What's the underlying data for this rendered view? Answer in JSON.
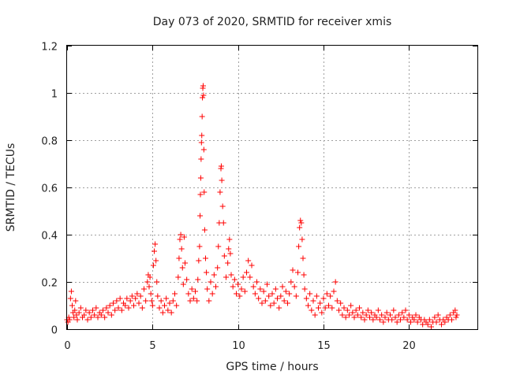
{
  "chart_data": {
    "type": "scatter",
    "title": "Day 073 of 2020, SRMTID for receiver xmis",
    "xlabel": "GPS time / hours",
    "ylabel": "SRMTID / TECUs",
    "xlim": [
      0,
      24
    ],
    "ylim": [
      0,
      1.2
    ],
    "xticks": [
      0,
      5,
      10,
      15,
      20
    ],
    "xtick_labels": [
      "0",
      "5",
      "10",
      "15",
      "20"
    ],
    "yticks": [
      0,
      0.2,
      0.4,
      0.6,
      0.8,
      1.0,
      1.2
    ],
    "ytick_labels": [
      "0",
      "0.2",
      "0.4",
      "0.6",
      "0.8",
      "1",
      "1.2"
    ],
    "grid": true,
    "marker": "+",
    "series": [
      {
        "name": "SRMTID",
        "color": "#ff0000",
        "points": [
          [
            0.0,
            0.04
          ],
          [
            0.05,
            0.03
          ],
          [
            0.1,
            0.05
          ],
          [
            0.15,
            0.04
          ],
          [
            0.2,
            0.13
          ],
          [
            0.25,
            0.16
          ],
          [
            0.3,
            0.1
          ],
          [
            0.35,
            0.07
          ],
          [
            0.4,
            0.05
          ],
          [
            0.45,
            0.08
          ],
          [
            0.5,
            0.12
          ],
          [
            0.55,
            0.06
          ],
          [
            0.6,
            0.04
          ],
          [
            0.7,
            0.07
          ],
          [
            0.8,
            0.09
          ],
          [
            0.9,
            0.05
          ],
          [
            1.0,
            0.06
          ],
          [
            1.1,
            0.08
          ],
          [
            1.2,
            0.04
          ],
          [
            1.3,
            0.07
          ],
          [
            1.4,
            0.05
          ],
          [
            1.5,
            0.08
          ],
          [
            1.6,
            0.06
          ],
          [
            1.7,
            0.09
          ],
          [
            1.8,
            0.05
          ],
          [
            1.9,
            0.07
          ],
          [
            2.0,
            0.06
          ],
          [
            2.1,
            0.08
          ],
          [
            2.2,
            0.05
          ],
          [
            2.3,
            0.09
          ],
          [
            2.4,
            0.07
          ],
          [
            2.5,
            0.1
          ],
          [
            2.6,
            0.06
          ],
          [
            2.7,
            0.11
          ],
          [
            2.8,
            0.08
          ],
          [
            2.9,
            0.12
          ],
          [
            3.0,
            0.09
          ],
          [
            3.1,
            0.13
          ],
          [
            3.2,
            0.08
          ],
          [
            3.3,
            0.11
          ],
          [
            3.4,
            0.1
          ],
          [
            3.5,
            0.13
          ],
          [
            3.6,
            0.09
          ],
          [
            3.7,
            0.12
          ],
          [
            3.8,
            0.14
          ],
          [
            3.9,
            0.1
          ],
          [
            4.0,
            0.13
          ],
          [
            4.1,
            0.15
          ],
          [
            4.2,
            0.11
          ],
          [
            4.3,
            0.14
          ],
          [
            4.4,
            0.09
          ],
          [
            4.5,
            0.17
          ],
          [
            4.6,
            0.12
          ],
          [
            4.7,
            0.2
          ],
          [
            4.75,
            0.23
          ],
          [
            4.8,
            0.18
          ],
          [
            4.85,
            0.22
          ],
          [
            4.9,
            0.15
          ],
          [
            4.95,
            0.12
          ],
          [
            5.0,
            0.1
          ],
          [
            5.05,
            0.27
          ],
          [
            5.1,
            0.33
          ],
          [
            5.15,
            0.36
          ],
          [
            5.2,
            0.29
          ],
          [
            5.25,
            0.2
          ],
          [
            5.3,
            0.14
          ],
          [
            5.4,
            0.09
          ],
          [
            5.5,
            0.12
          ],
          [
            5.6,
            0.07
          ],
          [
            5.7,
            0.1
          ],
          [
            5.8,
            0.13
          ],
          [
            5.9,
            0.08
          ],
          [
            6.0,
            0.11
          ],
          [
            6.1,
            0.07
          ],
          [
            6.2,
            0.12
          ],
          [
            6.3,
            0.15
          ],
          [
            6.4,
            0.1
          ],
          [
            6.5,
            0.22
          ],
          [
            6.55,
            0.3
          ],
          [
            6.6,
            0.38
          ],
          [
            6.65,
            0.4
          ],
          [
            6.7,
            0.34
          ],
          [
            6.75,
            0.26
          ],
          [
            6.8,
            0.19
          ],
          [
            6.85,
            0.39
          ],
          [
            6.9,
            0.28
          ],
          [
            7.0,
            0.21
          ],
          [
            7.1,
            0.15
          ],
          [
            7.2,
            0.12
          ],
          [
            7.3,
            0.17
          ],
          [
            7.4,
            0.13
          ],
          [
            7.5,
            0.16
          ],
          [
            7.6,
            0.12
          ],
          [
            7.65,
            0.21
          ],
          [
            7.7,
            0.29
          ],
          [
            7.75,
            0.35
          ],
          [
            7.78,
            0.48
          ],
          [
            7.8,
            0.57
          ],
          [
            7.82,
            0.64
          ],
          [
            7.84,
            0.72
          ],
          [
            7.86,
            0.79
          ],
          [
            7.88,
            0.82
          ],
          [
            7.9,
            0.9
          ],
          [
            7.92,
            0.98
          ],
          [
            7.94,
            1.02
          ],
          [
            7.96,
            1.03
          ],
          [
            7.98,
            0.99
          ],
          [
            8.0,
            0.76
          ],
          [
            8.02,
            0.58
          ],
          [
            8.05,
            0.42
          ],
          [
            8.1,
            0.3
          ],
          [
            8.15,
            0.24
          ],
          [
            8.2,
            0.17
          ],
          [
            8.3,
            0.12
          ],
          [
            8.4,
            0.2
          ],
          [
            8.5,
            0.15
          ],
          [
            8.6,
            0.23
          ],
          [
            8.7,
            0.18
          ],
          [
            8.8,
            0.26
          ],
          [
            8.85,
            0.35
          ],
          [
            8.9,
            0.45
          ],
          [
            8.95,
            0.58
          ],
          [
            9.0,
            0.68
          ],
          [
            9.02,
            0.69
          ],
          [
            9.05,
            0.63
          ],
          [
            9.1,
            0.52
          ],
          [
            9.15,
            0.45
          ],
          [
            9.2,
            0.31
          ],
          [
            9.3,
            0.22
          ],
          [
            9.4,
            0.28
          ],
          [
            9.45,
            0.34
          ],
          [
            9.5,
            0.38
          ],
          [
            9.55,
            0.32
          ],
          [
            9.6,
            0.23
          ],
          [
            9.7,
            0.18
          ],
          [
            9.8,
            0.21
          ],
          [
            9.9,
            0.15
          ],
          [
            10.0,
            0.19
          ],
          [
            10.1,
            0.14
          ],
          [
            10.2,
            0.17
          ],
          [
            10.3,
            0.22
          ],
          [
            10.4,
            0.16
          ],
          [
            10.5,
            0.24
          ],
          [
            10.6,
            0.29
          ],
          [
            10.7,
            0.22
          ],
          [
            10.8,
            0.27
          ],
          [
            10.9,
            0.18
          ],
          [
            11.0,
            0.15
          ],
          [
            11.1,
            0.2
          ],
          [
            11.2,
            0.13
          ],
          [
            11.3,
            0.17
          ],
          [
            11.4,
            0.11
          ],
          [
            11.5,
            0.16
          ],
          [
            11.6,
            0.12
          ],
          [
            11.7,
            0.19
          ],
          [
            11.8,
            0.14
          ],
          [
            11.9,
            0.1
          ],
          [
            12.0,
            0.15
          ],
          [
            12.1,
            0.11
          ],
          [
            12.2,
            0.17
          ],
          [
            12.3,
            0.13
          ],
          [
            12.4,
            0.09
          ],
          [
            12.5,
            0.14
          ],
          [
            12.6,
            0.18
          ],
          [
            12.7,
            0.12
          ],
          [
            12.8,
            0.16
          ],
          [
            12.9,
            0.11
          ],
          [
            13.0,
            0.15
          ],
          [
            13.1,
            0.2
          ],
          [
            13.2,
            0.25
          ],
          [
            13.3,
            0.18
          ],
          [
            13.4,
            0.14
          ],
          [
            13.5,
            0.24
          ],
          [
            13.55,
            0.35
          ],
          [
            13.6,
            0.43
          ],
          [
            13.65,
            0.46
          ],
          [
            13.7,
            0.45
          ],
          [
            13.75,
            0.38
          ],
          [
            13.8,
            0.3
          ],
          [
            13.85,
            0.23
          ],
          [
            13.9,
            0.17
          ],
          [
            14.0,
            0.13
          ],
          [
            14.1,
            0.1
          ],
          [
            14.2,
            0.15
          ],
          [
            14.3,
            0.08
          ],
          [
            14.4,
            0.12
          ],
          [
            14.5,
            0.06
          ],
          [
            14.6,
            0.14
          ],
          [
            14.7,
            0.09
          ],
          [
            14.8,
            0.11
          ],
          [
            14.9,
            0.07
          ],
          [
            15.0,
            0.13
          ],
          [
            15.1,
            0.09
          ],
          [
            15.2,
            0.15
          ],
          [
            15.3,
            0.1
          ],
          [
            15.4,
            0.14
          ],
          [
            15.5,
            0.09
          ],
          [
            15.6,
            0.16
          ],
          [
            15.7,
            0.2
          ],
          [
            15.8,
            0.12
          ],
          [
            15.9,
            0.08
          ],
          [
            16.0,
            0.11
          ],
          [
            16.1,
            0.06
          ],
          [
            16.2,
            0.09
          ],
          [
            16.3,
            0.05
          ],
          [
            16.4,
            0.08
          ],
          [
            16.5,
            0.06
          ],
          [
            16.6,
            0.1
          ],
          [
            16.7,
            0.07
          ],
          [
            16.8,
            0.05
          ],
          [
            16.9,
            0.08
          ],
          [
            17.0,
            0.06
          ],
          [
            17.1,
            0.09
          ],
          [
            17.2,
            0.05
          ],
          [
            17.3,
            0.07
          ],
          [
            17.4,
            0.04
          ],
          [
            17.5,
            0.06
          ],
          [
            17.6,
            0.08
          ],
          [
            17.7,
            0.05
          ],
          [
            17.8,
            0.07
          ],
          [
            17.9,
            0.04
          ],
          [
            18.0,
            0.06
          ],
          [
            18.1,
            0.05
          ],
          [
            18.2,
            0.08
          ],
          [
            18.3,
            0.04
          ],
          [
            18.4,
            0.06
          ],
          [
            18.5,
            0.03
          ],
          [
            18.6,
            0.05
          ],
          [
            18.7,
            0.07
          ],
          [
            18.8,
            0.04
          ],
          [
            18.9,
            0.06
          ],
          [
            19.0,
            0.04
          ],
          [
            19.1,
            0.08
          ],
          [
            19.2,
            0.05
          ],
          [
            19.3,
            0.03
          ],
          [
            19.4,
            0.06
          ],
          [
            19.5,
            0.04
          ],
          [
            19.6,
            0.07
          ],
          [
            19.7,
            0.05
          ],
          [
            19.8,
            0.08
          ],
          [
            19.9,
            0.04
          ],
          [
            20.0,
            0.06
          ],
          [
            20.1,
            0.03
          ],
          [
            20.2,
            0.05
          ],
          [
            20.3,
            0.04
          ],
          [
            20.4,
            0.06
          ],
          [
            20.5,
            0.03
          ],
          [
            20.6,
            0.05
          ],
          [
            20.7,
            0.04
          ],
          [
            20.8,
            0.02
          ],
          [
            20.9,
            0.04
          ],
          [
            21.0,
            0.03
          ],
          [
            21.1,
            0.02
          ],
          [
            21.2,
            0.04
          ],
          [
            21.3,
            0.01
          ],
          [
            21.4,
            0.03
          ],
          [
            21.5,
            0.05
          ],
          [
            21.6,
            0.03
          ],
          [
            21.7,
            0.06
          ],
          [
            21.8,
            0.04
          ],
          [
            21.9,
            0.02
          ],
          [
            22.0,
            0.04
          ],
          [
            22.1,
            0.03
          ],
          [
            22.2,
            0.05
          ],
          [
            22.3,
            0.04
          ],
          [
            22.4,
            0.06
          ],
          [
            22.5,
            0.04
          ],
          [
            22.6,
            0.07
          ],
          [
            22.7,
            0.08
          ],
          [
            22.75,
            0.05
          ],
          [
            22.8,
            0.06
          ]
        ]
      }
    ]
  }
}
